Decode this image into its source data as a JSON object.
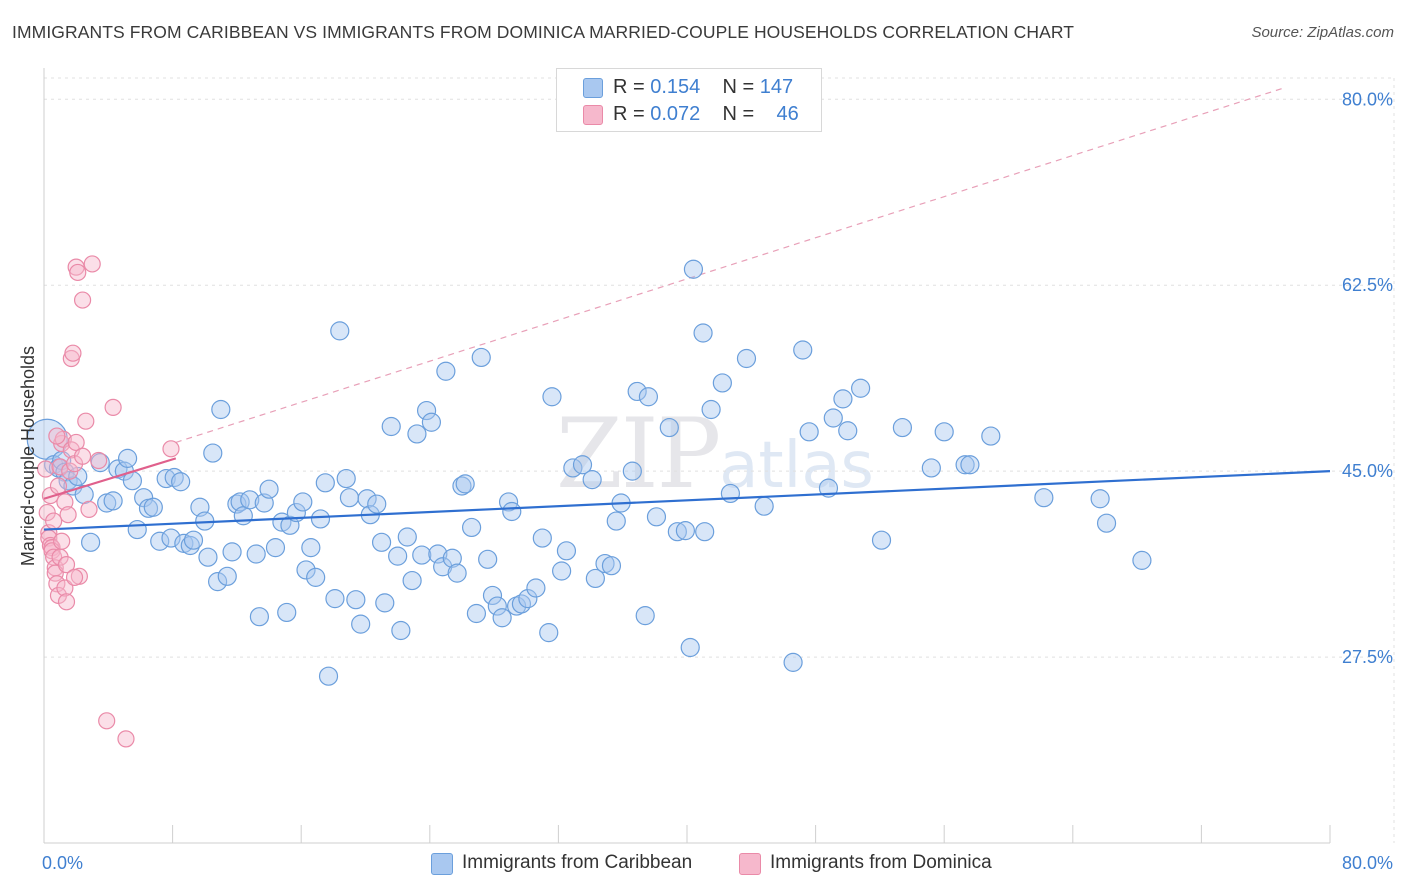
{
  "header": {
    "title": "IMMIGRANTS FROM CARIBBEAN VS IMMIGRANTS FROM DOMINICA MARRIED-COUPLE HOUSEHOLDS CORRELATION CHART",
    "source": "Source: ZipAtlas.com"
  },
  "watermark": {
    "zip": "ZIP",
    "atlas": "atlas"
  },
  "legend": {
    "rows": [
      {
        "r_label": "R =",
        "r_value": "0.154",
        "n_label": "N =",
        "n_value": "147",
        "color": "#a9c8f0"
      },
      {
        "r_label": "R =",
        "r_value": "0.072",
        "n_label": "N =",
        "n_value": "46",
        "color": "#f6b8cc"
      }
    ]
  },
  "bottom_legend": {
    "series1": "Immigrants from Caribbean",
    "series2": "Immigrants from Dominica"
  },
  "colors": {
    "caribbean_fill": "#a9c8f0",
    "caribbean_stroke": "#6b9fdc",
    "caribbean_line": "#2f6fd0",
    "dominica_fill": "#f6b8cc",
    "dominica_stroke": "#ea8aa8",
    "dominica_line": "#e0608c",
    "label_blue": "#3f7fd0",
    "grid": "#e0e0e0"
  },
  "chart_data": {
    "type": "scatter",
    "ylabel": "Married-couple Households",
    "xlim": [
      0,
      80
    ],
    "ylim": [
      10,
      82
    ],
    "x_tick_labels": [
      "0.0%",
      "80.0%"
    ],
    "y_ticks": [
      {
        "value": 27.5,
        "label": "27.5%"
      },
      {
        "value": 45.0,
        "label": "45.0%"
      },
      {
        "value": 62.5,
        "label": "62.5%"
      },
      {
        "value": 80.0,
        "label": "80.0%"
      }
    ],
    "grid": true,
    "series": [
      {
        "name": "Immigrants from Caribbean",
        "R": 0.154,
        "N": 147,
        "trend": {
          "x": [
            0,
            80
          ],
          "y": [
            39.5,
            45.0
          ]
        },
        "points": [
          [
            0.2,
            48.0
          ],
          [
            0.6,
            45.6
          ],
          [
            0.9,
            45.3
          ],
          [
            1.1,
            46.0
          ],
          [
            1.3,
            44.9
          ],
          [
            1.5,
            44.1
          ],
          [
            1.8,
            43.6
          ],
          [
            2.1,
            44.5
          ],
          [
            2.5,
            42.8
          ],
          [
            2.9,
            38.3
          ],
          [
            3.5,
            45.8
          ],
          [
            3.9,
            42.0
          ],
          [
            4.3,
            42.2
          ],
          [
            4.6,
            45.2
          ],
          [
            5.0,
            45.0
          ],
          [
            5.2,
            46.2
          ],
          [
            5.5,
            44.1
          ],
          [
            5.8,
            39.5
          ],
          [
            6.2,
            42.5
          ],
          [
            6.5,
            41.5
          ],
          [
            6.8,
            41.6
          ],
          [
            7.2,
            38.4
          ],
          [
            7.6,
            44.3
          ],
          [
            7.9,
            38.7
          ],
          [
            8.1,
            44.4
          ],
          [
            8.5,
            44.0
          ],
          [
            8.7,
            38.2
          ],
          [
            9.1,
            38.0
          ],
          [
            9.3,
            38.5
          ],
          [
            9.7,
            41.6
          ],
          [
            10.0,
            40.3
          ],
          [
            10.2,
            36.9
          ],
          [
            10.5,
            46.7
          ],
          [
            10.8,
            34.6
          ],
          [
            11.0,
            50.8
          ],
          [
            11.4,
            35.1
          ],
          [
            11.7,
            37.4
          ],
          [
            12.0,
            41.9
          ],
          [
            12.2,
            42.1
          ],
          [
            12.4,
            40.8
          ],
          [
            12.8,
            42.3
          ],
          [
            13.2,
            37.2
          ],
          [
            13.4,
            31.3
          ],
          [
            13.7,
            42.0
          ],
          [
            14.0,
            43.3
          ],
          [
            14.4,
            37.8
          ],
          [
            14.8,
            40.2
          ],
          [
            15.1,
            31.7
          ],
          [
            15.3,
            39.9
          ],
          [
            15.7,
            41.1
          ],
          [
            16.1,
            42.1
          ],
          [
            16.3,
            35.7
          ],
          [
            16.6,
            37.8
          ],
          [
            16.9,
            35.0
          ],
          [
            17.2,
            40.5
          ],
          [
            17.5,
            43.9
          ],
          [
            17.7,
            25.7
          ],
          [
            18.1,
            33.0
          ],
          [
            18.4,
            58.2
          ],
          [
            18.8,
            44.3
          ],
          [
            19.0,
            42.5
          ],
          [
            19.4,
            32.9
          ],
          [
            19.7,
            30.6
          ],
          [
            20.1,
            42.4
          ],
          [
            20.3,
            40.9
          ],
          [
            20.7,
            41.9
          ],
          [
            21.0,
            38.3
          ],
          [
            21.2,
            32.6
          ],
          [
            21.6,
            49.2
          ],
          [
            22.0,
            37.0
          ],
          [
            22.2,
            30.0
          ],
          [
            22.6,
            38.8
          ],
          [
            22.9,
            34.7
          ],
          [
            23.2,
            48.5
          ],
          [
            23.5,
            37.1
          ],
          [
            23.8,
            50.7
          ],
          [
            24.1,
            49.6
          ],
          [
            24.5,
            37.2
          ],
          [
            24.8,
            36.0
          ],
          [
            25.0,
            54.4
          ],
          [
            25.4,
            36.8
          ],
          [
            25.7,
            35.4
          ],
          [
            26.0,
            43.6
          ],
          [
            26.2,
            43.8
          ],
          [
            26.6,
            39.7
          ],
          [
            26.9,
            31.6
          ],
          [
            27.2,
            55.7
          ],
          [
            27.6,
            36.7
          ],
          [
            27.9,
            33.3
          ],
          [
            28.2,
            32.3
          ],
          [
            28.5,
            31.2
          ],
          [
            28.9,
            42.1
          ],
          [
            29.1,
            41.2
          ],
          [
            29.4,
            32.3
          ],
          [
            29.7,
            32.5
          ],
          [
            30.1,
            33.0
          ],
          [
            30.6,
            34.0
          ],
          [
            31.0,
            38.7
          ],
          [
            31.4,
            29.8
          ],
          [
            31.6,
            52.0
          ],
          [
            32.2,
            35.6
          ],
          [
            32.5,
            37.5
          ],
          [
            32.9,
            45.3
          ],
          [
            33.5,
            45.6
          ],
          [
            34.1,
            44.2
          ],
          [
            34.3,
            34.9
          ],
          [
            34.9,
            36.3
          ],
          [
            35.3,
            36.1
          ],
          [
            35.6,
            40.3
          ],
          [
            35.9,
            42.0
          ],
          [
            36.6,
            45.0
          ],
          [
            36.9,
            52.5
          ],
          [
            37.4,
            31.4
          ],
          [
            37.6,
            52.0
          ],
          [
            38.1,
            40.7
          ],
          [
            38.9,
            49.1
          ],
          [
            39.4,
            39.3
          ],
          [
            39.9,
            39.4
          ],
          [
            40.2,
            28.4
          ],
          [
            40.4,
            64.0
          ],
          [
            41.0,
            58.0
          ],
          [
            41.1,
            39.3
          ],
          [
            41.5,
            50.8
          ],
          [
            42.2,
            53.3
          ],
          [
            42.7,
            42.9
          ],
          [
            43.7,
            55.6
          ],
          [
            44.8,
            41.7
          ],
          [
            46.6,
            27.0
          ],
          [
            47.2,
            56.4
          ],
          [
            47.6,
            48.7
          ],
          [
            48.8,
            43.4
          ],
          [
            49.1,
            50.0
          ],
          [
            49.7,
            51.8
          ],
          [
            50.0,
            48.8
          ],
          [
            50.8,
            52.8
          ],
          [
            52.1,
            38.5
          ],
          [
            53.4,
            49.1
          ],
          [
            55.2,
            45.3
          ],
          [
            56.0,
            48.7
          ],
          [
            57.3,
            45.6
          ],
          [
            57.6,
            45.6
          ],
          [
            58.9,
            48.3
          ],
          [
            62.2,
            42.5
          ],
          [
            65.7,
            42.4
          ],
          [
            66.1,
            40.1
          ],
          [
            68.3,
            36.6
          ]
        ]
      },
      {
        "name": "Immigrants from Dominica",
        "R": 0.072,
        "N": 46,
        "trend": {
          "x": [
            0,
            8.2
          ],
          "y": [
            42.4,
            46.2
          ]
        },
        "trend_extended": {
          "x": [
            8.2,
            77
          ],
          "y": [
            47.7,
            81.0
          ]
        },
        "points": [
          [
            0.1,
            45.2
          ],
          [
            0.2,
            41.1
          ],
          [
            0.3,
            39.2
          ],
          [
            0.3,
            38.7
          ],
          [
            0.4,
            38.0
          ],
          [
            0.5,
            37.8
          ],
          [
            0.5,
            37.5
          ],
          [
            0.6,
            36.9
          ],
          [
            0.7,
            35.9
          ],
          [
            0.7,
            35.4
          ],
          [
            0.8,
            34.4
          ],
          [
            0.9,
            33.3
          ],
          [
            1.0,
            36.9
          ],
          [
            1.0,
            45.4
          ],
          [
            1.1,
            47.6
          ],
          [
            1.2,
            48.0
          ],
          [
            1.3,
            42.1
          ],
          [
            1.3,
            34.0
          ],
          [
            1.4,
            32.7
          ],
          [
            1.5,
            40.9
          ],
          [
            1.6,
            45.0
          ],
          [
            1.7,
            55.6
          ],
          [
            1.7,
            47.0
          ],
          [
            1.8,
            56.1
          ],
          [
            1.9,
            45.7
          ],
          [
            2.0,
            64.2
          ],
          [
            2.0,
            47.7
          ],
          [
            2.1,
            63.7
          ],
          [
            2.2,
            35.1
          ],
          [
            2.4,
            46.4
          ],
          [
            2.4,
            61.1
          ],
          [
            2.6,
            49.7
          ],
          [
            2.8,
            41.4
          ],
          [
            3.0,
            64.5
          ],
          [
            3.4,
            46.0
          ],
          [
            3.9,
            21.5
          ],
          [
            4.3,
            51.0
          ],
          [
            5.1,
            19.8
          ],
          [
            7.9,
            47.1
          ],
          [
            0.4,
            42.7
          ],
          [
            0.6,
            40.3
          ],
          [
            0.9,
            43.6
          ],
          [
            1.1,
            38.4
          ],
          [
            1.4,
            36.2
          ],
          [
            1.9,
            35.0
          ],
          [
            0.8,
            48.3
          ]
        ]
      }
    ]
  }
}
